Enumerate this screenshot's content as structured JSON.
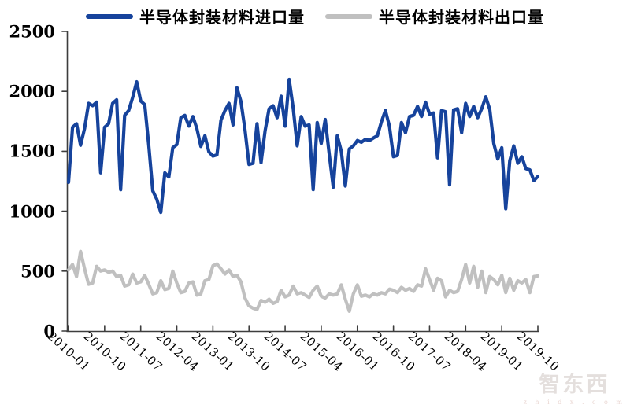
{
  "legend": {
    "items": [
      {
        "label": "半导体封装材料进口量",
        "color": "#16439c"
      },
      {
        "label": "半导体封装材料出口量",
        "color": "#c0c0c0"
      }
    ]
  },
  "watermark": {
    "title": "智东西",
    "subtitle": "z h i d x . c o m"
  },
  "chart_data": {
    "type": "line",
    "title": "",
    "xlabel": "",
    "ylabel": "",
    "x_frequency": "monthly",
    "x_start": "2010-01",
    "x_end": "2019-10",
    "x_tick_labels": [
      "2010-01",
      "2010-10",
      "2011-07",
      "2012-04",
      "2013-01",
      "2013-10",
      "2014-07",
      "2015-04",
      "2016-01",
      "2016-10",
      "2017-07",
      "2018-04",
      "2019-01",
      "2019-10"
    ],
    "y_ticks": [
      0,
      500,
      1000,
      1500,
      2000,
      2500
    ],
    "ylim": [
      0,
      2500
    ],
    "grid": false,
    "legend_position": "top",
    "series": [
      {
        "name": "半导体封装材料进口量",
        "color": "#16439c",
        "values": [
          1240,
          1700,
          1730,
          1550,
          1690,
          1900,
          1880,
          1910,
          1320,
          1700,
          1730,
          1900,
          1930,
          1180,
          1800,
          1840,
          1950,
          2080,
          1920,
          1890,
          1550,
          1170,
          1100,
          990,
          1320,
          1285,
          1530,
          1555,
          1780,
          1800,
          1710,
          1790,
          1690,
          1540,
          1630,
          1495,
          1460,
          1470,
          1760,
          1840,
          1900,
          1720,
          2030,
          1915,
          1680,
          1390,
          1400,
          1730,
          1405,
          1670,
          1855,
          1880,
          1780,
          1960,
          1710,
          2100,
          1860,
          1545,
          1790,
          1710,
          1720,
          1180,
          1740,
          1565,
          1765,
          1475,
          1200,
          1630,
          1500,
          1210,
          1520,
          1545,
          1590,
          1575,
          1600,
          1590,
          1610,
          1630,
          1745,
          1840,
          1710,
          1455,
          1465,
          1740,
          1655,
          1790,
          1800,
          1875,
          1790,
          1910,
          1810,
          1820,
          1445,
          1840,
          1830,
          1220,
          1845,
          1855,
          1655,
          1900,
          1790,
          1875,
          1780,
          1855,
          1955,
          1850,
          1565,
          1435,
          1530,
          1020,
          1420,
          1545,
          1400,
          1455,
          1355,
          1345,
          1255,
          1290
        ]
      },
      {
        "name": "半导体封装材料出口量",
        "color": "#c0c0c0",
        "values": [
          510,
          555,
          455,
          665,
          520,
          390,
          400,
          540,
          500,
          510,
          490,
          500,
          455,
          465,
          375,
          385,
          475,
          400,
          410,
          465,
          390,
          310,
          320,
          420,
          345,
          355,
          500,
          400,
          320,
          330,
          400,
          410,
          300,
          310,
          420,
          430,
          545,
          560,
          520,
          475,
          510,
          455,
          465,
          410,
          275,
          210,
          190,
          180,
          255,
          240,
          265,
          230,
          245,
          340,
          285,
          300,
          375,
          310,
          320,
          300,
          280,
          340,
          375,
          290,
          275,
          310,
          300,
          310,
          385,
          265,
          165,
          310,
          385,
          290,
          300,
          285,
          310,
          300,
          320,
          310,
          350,
          340,
          320,
          365,
          340,
          355,
          330,
          385,
          375,
          520,
          430,
          340,
          440,
          420,
          285,
          340,
          320,
          330,
          430,
          555,
          400,
          540,
          365,
          500,
          320,
          455,
          430,
          385,
          465,
          320,
          440,
          340,
          420,
          400,
          430,
          320,
          455,
          460
        ]
      }
    ]
  }
}
